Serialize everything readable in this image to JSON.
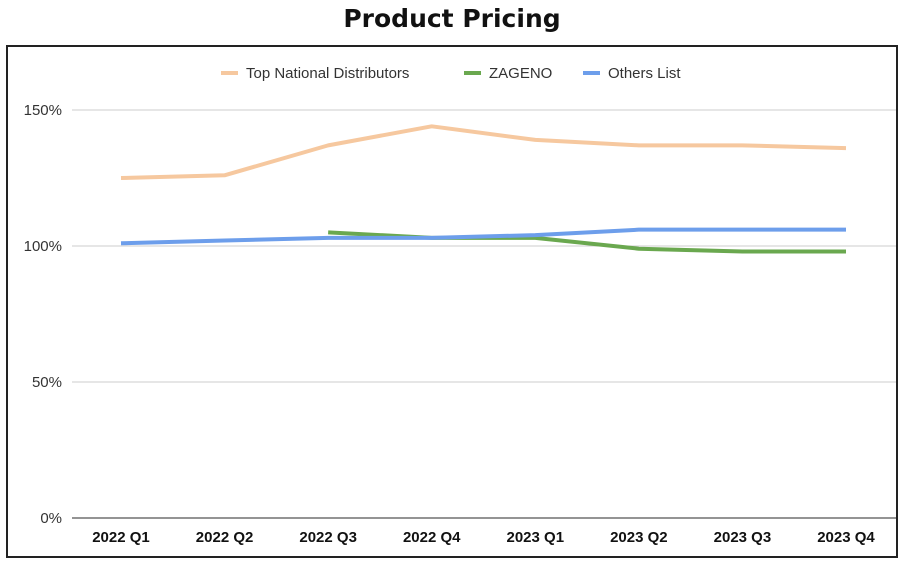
{
  "chart_data": {
    "type": "line",
    "title": "Product Pricing",
    "categories": [
      "2022 Q1",
      "2022 Q2",
      "2022 Q3",
      "2022 Q4",
      "2023 Q1",
      "2023 Q2",
      "2023 Q3",
      "2023 Q4"
    ],
    "series": [
      {
        "name": "Top National Distributors",
        "color": "#f6c89f",
        "values": [
          125,
          126,
          137,
          144,
          139,
          137,
          137,
          136
        ]
      },
      {
        "name": "ZAGENO",
        "color": "#6aa84f",
        "values": [
          null,
          null,
          105,
          103,
          103,
          99,
          98,
          98
        ]
      },
      {
        "name": "Others List",
        "color": "#6d9eeb",
        "values": [
          101,
          102,
          103,
          103,
          104,
          106,
          106,
          106
        ]
      }
    ],
    "yticks": [
      0,
      50,
      100,
      150
    ],
    "ytick_labels": [
      "0%",
      "50%",
      "100%",
      "150%"
    ],
    "ylim": [
      0,
      150
    ],
    "grid": true,
    "legend_position": "top-center"
  }
}
